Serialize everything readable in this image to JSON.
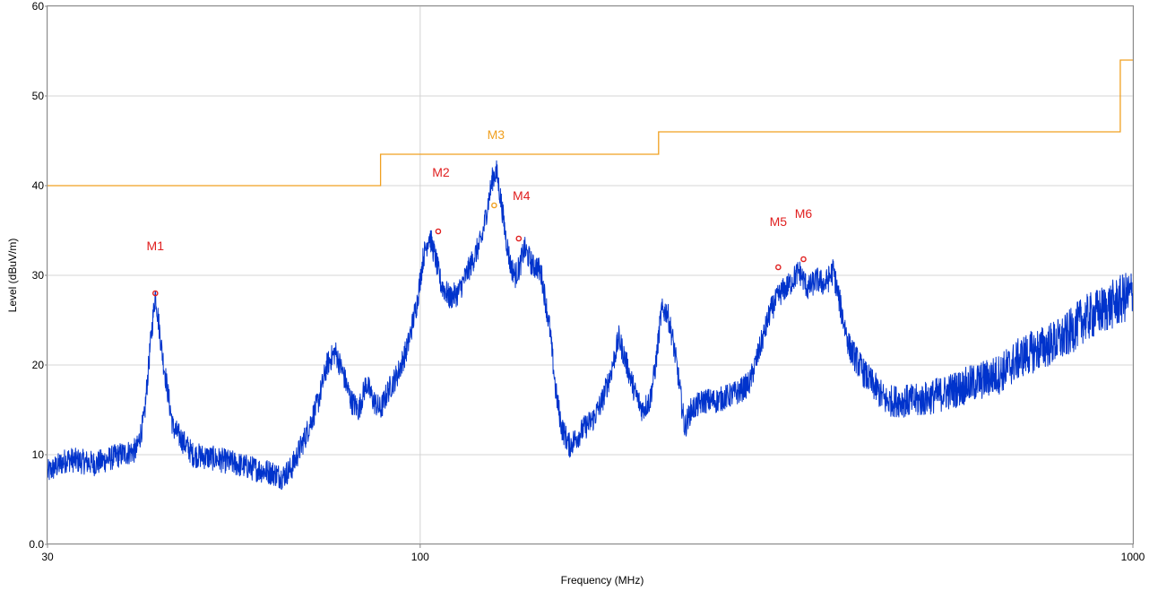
{
  "chart_data": {
    "type": "line",
    "xlabel": "Frequency (MHz)",
    "ylabel": "Level (dBuV/m)",
    "xscale": "log",
    "xlim": [
      30,
      1000
    ],
    "ylim": [
      0,
      60
    ],
    "x_ticks": [
      30,
      100,
      1000
    ],
    "x_tick_labels": [
      "30",
      "100",
      "1000"
    ],
    "y_ticks": [
      0,
      10,
      20,
      30,
      40,
      50,
      60
    ],
    "y_tick_labels": [
      "0.0",
      "10",
      "20",
      "30",
      "40",
      "50",
      "60"
    ],
    "grid": true,
    "series": [
      {
        "color": "#0033cc",
        "x": [
          30,
          32,
          35,
          38,
          40,
          41,
          41.8,
          42.5,
          43.5,
          45,
          48,
          52,
          55,
          58,
          62,
          64,
          66,
          69,
          72,
          74,
          76,
          78,
          80,
          82,
          84,
          86,
          88,
          90,
          93,
          96,
          99,
          101,
          103,
          105,
          107,
          110,
          113,
          116,
          119,
          122,
          124.5,
          126.5,
          128,
          130,
          132,
          134,
          136,
          138,
          140,
          142,
          144,
          146,
          148,
          150,
          152,
          155,
          158,
          162,
          166,
          170,
          175,
          180,
          185,
          190,
          195,
          200,
          205,
          210,
          214,
          218,
          222,
          226,
          230,
          235,
          240,
          250,
          260,
          270,
          280,
          290,
          300,
          310,
          320,
          330,
          340,
          350,
          360,
          370,
          380,
          390,
          400,
          420,
          450,
          500,
          550,
          600,
          650,
          700,
          750,
          800,
          850,
          900,
          950,
          1000
        ],
        "y": [
          8,
          9.5,
          9,
          10,
          10.5,
          14,
          22,
          28,
          21,
          13,
          10,
          9.5,
          9,
          8.5,
          8,
          7.5,
          8.5,
          12,
          16,
          20,
          21.5,
          19,
          16,
          15,
          18,
          16,
          15,
          17,
          19,
          22,
          27,
          32,
          34.5,
          32,
          29,
          27.5,
          28,
          30,
          32,
          34,
          38,
          41,
          41.5,
          38,
          34,
          31,
          30,
          31,
          33,
          32,
          31,
          31,
          30,
          27,
          24,
          17,
          13,
          11,
          12,
          13,
          14,
          16,
          19,
          23,
          20,
          17,
          15,
          16,
          20,
          26,
          26,
          23,
          19,
          13,
          15,
          16,
          16,
          16.5,
          17,
          18,
          22,
          26,
          28,
          29,
          30.5,
          28.5,
          29.5,
          29,
          30.5,
          26,
          22,
          19,
          16,
          16,
          17,
          18,
          19,
          21,
          22,
          23,
          25,
          26,
          27,
          28
        ]
      },
      {
        "color": "#f0a020",
        "x": [
          30,
          88,
          88,
          216,
          216,
          960,
          960,
          1000
        ],
        "y": [
          40,
          40,
          43.5,
          43.5,
          46,
          46,
          54,
          54
        ]
      }
    ],
    "markers": [
      {
        "label": "M1",
        "x": 42.5,
        "y": 28,
        "color": "#e02020"
      },
      {
        "label": "M2",
        "x": 106,
        "y": 34.9,
        "color": "#e02020"
      },
      {
        "label": "M3",
        "x": 127,
        "y": 37.8,
        "color": "#f0a020"
      },
      {
        "label": "M4",
        "x": 137.5,
        "y": 34.1,
        "color": "#e02020"
      },
      {
        "label": "M5",
        "x": 318,
        "y": 30.9,
        "color": "#e02020"
      },
      {
        "label": "M6",
        "x": 345,
        "y": 31.8,
        "color": "#e02020"
      }
    ]
  }
}
